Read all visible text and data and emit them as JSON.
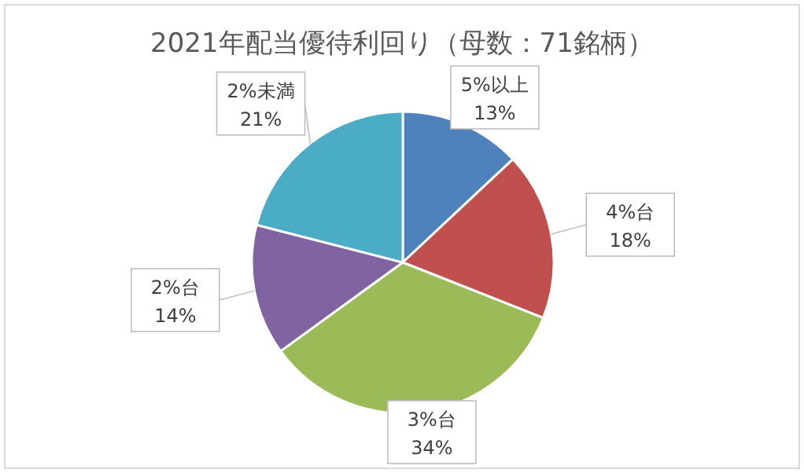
{
  "chart_data": {
    "type": "pie",
    "title": "2021年配当優待利回り（母数：71銘柄）",
    "categories": [
      "5%以上",
      "4%台",
      "3%台",
      "2%台",
      "2%未満"
    ],
    "values": [
      13,
      18,
      34,
      14,
      21
    ],
    "colors": [
      "#4f81bd",
      "#c0504d",
      "#9bbb59",
      "#8064a2",
      "#4bacc6"
    ],
    "value_labels": [
      "13%",
      "18%",
      "34%",
      "14%",
      "21%"
    ]
  }
}
